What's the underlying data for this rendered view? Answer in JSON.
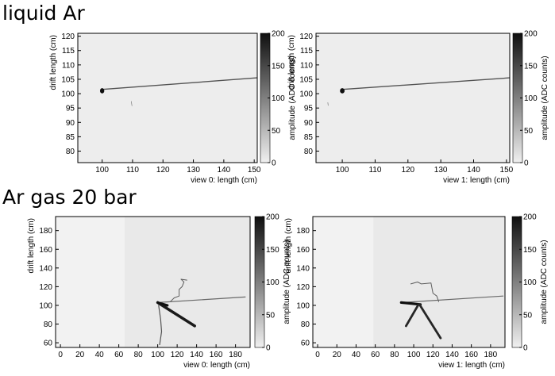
{
  "sections": {
    "top": "liquid Ar",
    "bottom": "Ar gas 20 bar"
  },
  "chart_data": [
    {
      "type": "heatmap",
      "section": "liquid Ar",
      "xlabel": "view 0: length (cm)",
      "ylabel": "drift length (cm)",
      "colorbar_label": "amplitude (ADC counts)",
      "xlim": [
        92,
        151
      ],
      "ylim": [
        76,
        121
      ],
      "xticks": [
        100,
        110,
        120,
        130,
        140,
        150
      ],
      "yticks": [
        80,
        85,
        90,
        95,
        100,
        105,
        110,
        115,
        120
      ],
      "zlim": [
        0,
        200
      ],
      "zticks": [
        0,
        50,
        100,
        150,
        200
      ],
      "background": "#ededed",
      "tracks": [
        {
          "points": [
            [
              100.5,
              101.5
            ],
            [
              151,
              105.5
            ]
          ],
          "amplitude": 140,
          "width": 1.4
        },
        {
          "points": [
            [
              109.6,
              97.3
            ],
            [
              109.8,
              95.8
            ]
          ],
          "amplitude": 120,
          "width": 0.6
        }
      ],
      "blobs": [
        {
          "x": 100.0,
          "y": 101.0,
          "w": 1.4,
          "h": 1.8,
          "amplitude": 200
        }
      ]
    },
    {
      "type": "heatmap",
      "section": "liquid Ar",
      "xlabel": "view 1: length (cm)",
      "ylabel": "drift length (cm)",
      "colorbar_label": "amplitude (ADC counts)",
      "xlim": [
        92,
        151
      ],
      "ylim": [
        76,
        121
      ],
      "xticks": [
        100,
        110,
        120,
        130,
        140,
        150
      ],
      "yticks": [
        80,
        85,
        90,
        95,
        100,
        105,
        110,
        115,
        120
      ],
      "zlim": [
        0,
        200
      ],
      "zticks": [
        0,
        50,
        100,
        150,
        200
      ],
      "background": "#ededed",
      "tracks": [
        {
          "points": [
            [
              100.5,
              101.5
            ],
            [
              151,
              105.5
            ]
          ],
          "amplitude": 140,
          "width": 1.4
        },
        {
          "points": [
            [
              95.6,
              96.9
            ],
            [
              95.7,
              95.9
            ]
          ],
          "amplitude": 120,
          "width": 0.6
        }
      ],
      "blobs": [
        {
          "x": 100.0,
          "y": 101.0,
          "w": 1.4,
          "h": 1.8,
          "amplitude": 200
        }
      ]
    },
    {
      "type": "heatmap",
      "section": "Ar gas 20 bar",
      "xlabel": "view 0: length (cm)",
      "ylabel": "drift length (cm)",
      "colorbar_label": "amplitude (ADC counts)",
      "xlim": [
        -5,
        195
      ],
      "ylim": [
        55,
        195
      ],
      "xticks": [
        0,
        20,
        40,
        60,
        80,
        100,
        120,
        140,
        160,
        180
      ],
      "yticks": [
        60,
        80,
        100,
        120,
        140,
        160,
        180
      ],
      "zlim": [
        0,
        200
      ],
      "zticks": [
        0,
        50,
        100,
        150,
        200
      ],
      "background": "#f2f2f2",
      "region": {
        "x0": 66,
        "color": "#e9e9e9"
      },
      "tracks": [
        {
          "points": [
            [
              100,
              103
            ],
            [
              190,
              109
            ]
          ],
          "amplitude": 120,
          "width": 1.2
        },
        {
          "points": [
            [
              100,
              103
            ],
            [
              138,
              78
            ]
          ],
          "amplitude": 190,
          "width": 3.5
        },
        {
          "points": [
            [
              100,
              103
            ],
            [
              110,
              100
            ]
          ],
          "amplitude": 200,
          "width": 3.0
        },
        {
          "points": [
            [
              101,
              100
            ],
            [
              103,
              85
            ],
            [
              104,
              72
            ],
            [
              102,
              58
            ]
          ],
          "amplitude": 140,
          "width": 1.2
        },
        {
          "points": [
            [
              113,
              104
            ],
            [
              117,
              108
            ],
            [
              122,
              110
            ],
            [
              122,
              117
            ],
            [
              125,
              120
            ],
            [
              127,
              125
            ],
            [
              124,
              128
            ],
            [
              130,
              127
            ]
          ],
          "amplitude": 130,
          "width": 1.0
        }
      ],
      "blobs": []
    },
    {
      "type": "heatmap",
      "section": "Ar gas 20 bar",
      "xlabel": "view 1: length (cm)",
      "ylabel": "drift length (cm)",
      "colorbar_label": "amplitude (ADC counts)",
      "xlim": [
        -5,
        195
      ],
      "ylim": [
        55,
        195
      ],
      "xticks": [
        0,
        20,
        40,
        60,
        80,
        100,
        120,
        140,
        160,
        180
      ],
      "yticks": [
        60,
        80,
        100,
        120,
        140,
        160,
        180
      ],
      "zlim": [
        0,
        200
      ],
      "zticks": [
        0,
        50,
        100,
        150,
        200
      ],
      "background": "#f2f2f2",
      "region": {
        "x0": 58,
        "color": "#e9e9e9"
      },
      "tracks": [
        {
          "points": [
            [
              87,
              103
            ],
            [
              193,
              110
            ]
          ],
          "amplitude": 120,
          "width": 1.2
        },
        {
          "points": [
            [
              87,
              103
            ],
            [
              107,
              101
            ]
          ],
          "amplitude": 200,
          "width": 3.2
        },
        {
          "points": [
            [
              106,
              101
            ],
            [
              128,
              65
            ]
          ],
          "amplitude": 180,
          "width": 2.8
        },
        {
          "points": [
            [
              105,
              101
            ],
            [
              92,
              78
            ]
          ],
          "amplitude": 180,
          "width": 2.8
        },
        {
          "points": [
            [
              97,
              123
            ],
            [
              104,
              125
            ],
            [
              108,
              123
            ],
            [
              118,
              124
            ],
            [
              120,
              113
            ],
            [
              124,
              110
            ],
            [
              126,
              104
            ]
          ],
          "amplitude": 130,
          "width": 1.0
        }
      ],
      "blobs": []
    }
  ]
}
